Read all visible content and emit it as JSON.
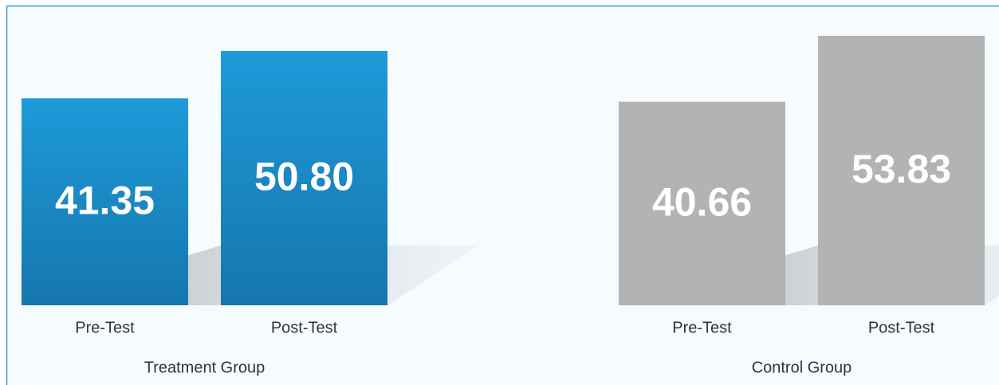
{
  "chart_data": {
    "type": "bar",
    "groups": [
      {
        "name": "Treatment Group",
        "categories": [
          "Pre-Test",
          "Post-Test"
        ],
        "values": [
          41.35,
          50.8
        ],
        "value_labels": [
          "41.35",
          "50.80"
        ],
        "color": "#1b8ccc"
      },
      {
        "name": "Control Group",
        "categories": [
          "Pre-Test",
          "Post-Test"
        ],
        "values": [
          40.66,
          53.83
        ],
        "value_labels": [
          "40.66",
          "53.83"
        ],
        "color": "#b3b3b3"
      }
    ]
  }
}
